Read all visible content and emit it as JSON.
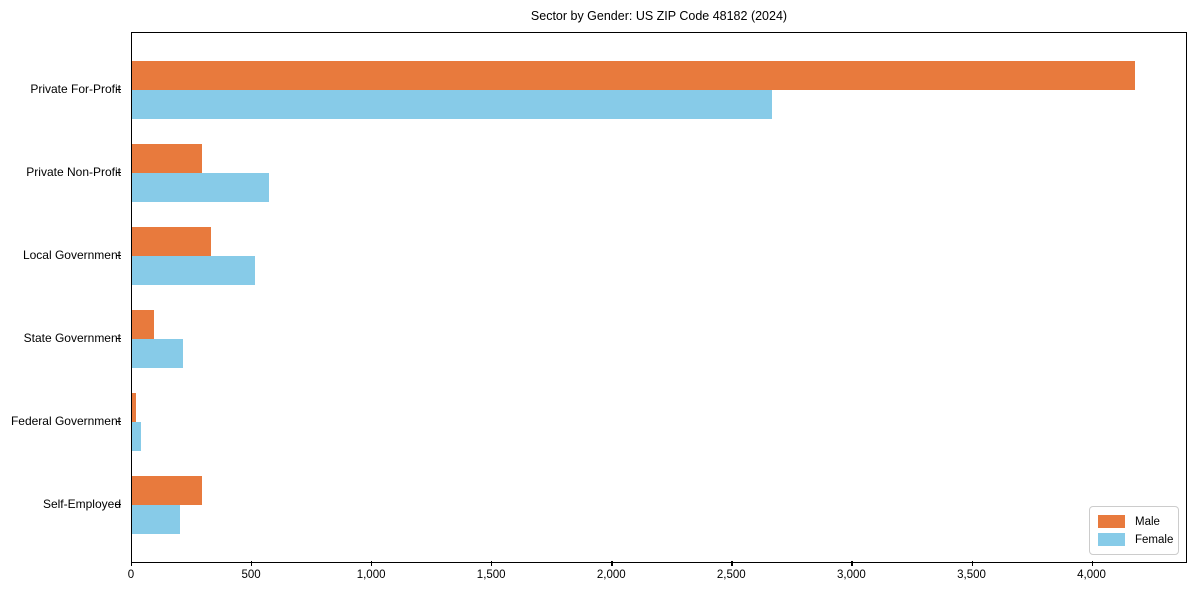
{
  "title": "Sector by Gender: US ZIP Code 48182 (2024)",
  "chart_data": {
    "type": "bar",
    "orientation": "horizontal",
    "title": "Sector by Gender: US ZIP Code 48182 (2024)",
    "categories": [
      "Private For-Profit",
      "Private Non-Profit",
      "Local Government",
      "State Government",
      "Federal Government",
      "Self-Employed"
    ],
    "series": [
      {
        "name": "Male",
        "color": "#e87a3d",
        "values": [
          4175,
          290,
          330,
          92,
          18,
          290
        ]
      },
      {
        "name": "Female",
        "color": "#87cbe8",
        "values": [
          2665,
          570,
          510,
          212,
          37,
          200
        ]
      }
    ],
    "xlabel": "",
    "ylabel": "",
    "xlim": [
      0,
      4385
    ],
    "x_ticks": [
      0,
      500,
      1000,
      1500,
      2000,
      2500,
      3000,
      3500,
      4000
    ],
    "x_tick_labels": [
      "0",
      "500",
      "1,000",
      "1,500",
      "2,000",
      "2,500",
      "3,000",
      "3,500",
      "4,000"
    ],
    "grid": false,
    "legend_position": "lower right"
  },
  "legend": {
    "items": [
      {
        "label": "Male",
        "color": "#e87a3d"
      },
      {
        "label": "Female",
        "color": "#87cbe8"
      }
    ]
  }
}
